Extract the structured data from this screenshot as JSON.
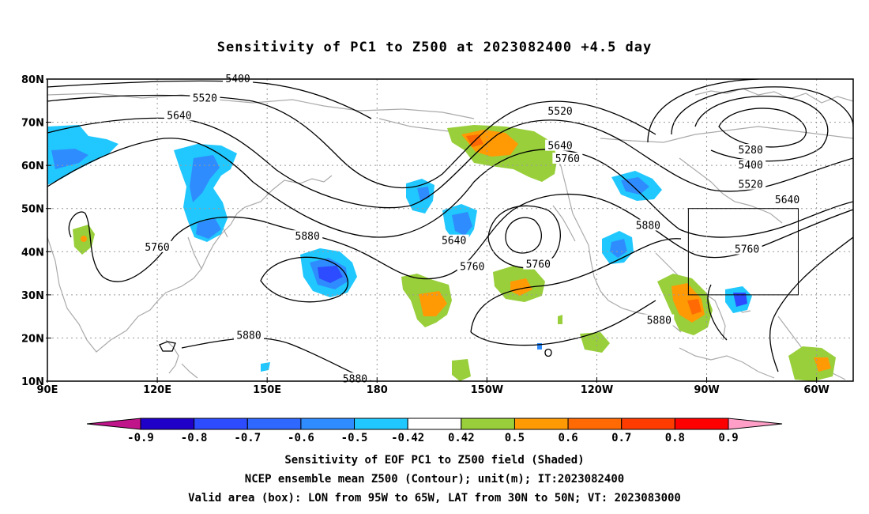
{
  "title": "Sensitivity of PC1 to Z500 at 2023082400 +4.5 day",
  "map": {
    "lon_range": [
      90,
      310
    ],
    "lat_range": [
      10,
      80
    ],
    "lat_labels": [
      {
        "lat": 80,
        "text": "80N"
      },
      {
        "lat": 70,
        "text": "70N"
      },
      {
        "lat": 60,
        "text": "60N"
      },
      {
        "lat": 50,
        "text": "50N"
      },
      {
        "lat": 40,
        "text": "40N"
      },
      {
        "lat": 30,
        "text": "30N"
      },
      {
        "lat": 20,
        "text": "20N"
      },
      {
        "lat": 10,
        "text": "10N"
      }
    ],
    "lon_labels": [
      {
        "lon": 90,
        "text": "90E"
      },
      {
        "lon": 120,
        "text": "120E"
      },
      {
        "lon": 150,
        "text": "150E"
      },
      {
        "lon": 180,
        "text": "180"
      },
      {
        "lon": 210,
        "text": "150W"
      },
      {
        "lon": 240,
        "text": "120W"
      },
      {
        "lon": 270,
        "text": "90W"
      },
      {
        "lon": 300,
        "text": "60W"
      }
    ],
    "valid_box": {
      "lon_min": 265,
      "lon_max": 295,
      "lat_min": 30,
      "lat_max": 50
    },
    "contour_labels": [
      {
        "text": "5400",
        "lon": 142,
        "lat": 80
      },
      {
        "text": "5520",
        "lon": 133,
        "lat": 75.5
      },
      {
        "text": "5640",
        "lon": 126,
        "lat": 71.5
      },
      {
        "text": "5760",
        "lon": 120,
        "lat": 41
      },
      {
        "text": "5880",
        "lon": 161,
        "lat": 43.5
      },
      {
        "text": "5880",
        "lon": 145,
        "lat": 20.5
      },
      {
        "text": "5880",
        "lon": 174,
        "lat": 10.5
      },
      {
        "text": "5640",
        "lon": 201,
        "lat": 42.5
      },
      {
        "text": "5760",
        "lon": 206,
        "lat": 36.5
      },
      {
        "text": "5520",
        "lon": 230,
        "lat": 72.5
      },
      {
        "text": "5640",
        "lon": 230,
        "lat": 64.5
      },
      {
        "text": "5760",
        "lon": 232,
        "lat": 61.5
      },
      {
        "text": "5760",
        "lon": 224,
        "lat": 37
      },
      {
        "text": "5880",
        "lon": 254,
        "lat": 46
      },
      {
        "text": "5880",
        "lon": 257,
        "lat": 24
      },
      {
        "text": "5280",
        "lon": 282,
        "lat": 63.5
      },
      {
        "text": "5400",
        "lon": 282,
        "lat": 60
      },
      {
        "text": "5520",
        "lon": 282,
        "lat": 55.5
      },
      {
        "text": "5640",
        "lon": 292,
        "lat": 52
      },
      {
        "text": "5760",
        "lon": 281,
        "lat": 40.5
      }
    ]
  },
  "colorbar": {
    "ticks": [
      "-0.9",
      "-0.8",
      "-0.7",
      "-0.6",
      "-0.5",
      "-0.42",
      "0.42",
      "0.5",
      "0.6",
      "0.7",
      "0.8",
      "0.9"
    ],
    "colors": [
      "#1f00c8",
      "#2d4bff",
      "#2f68ff",
      "#2f8cff",
      "#20c8ff",
      "#ffffff",
      "#98cf3a",
      "#ff9a05",
      "#ff6a05",
      "#ff3c00",
      "#ff0000"
    ],
    "left_cap": "#c0158a",
    "right_cap": "#ff9fc8"
  },
  "captions": [
    "Sensitivity of EOF PC1 to Z500 field (Shaded)",
    "NCEP ensemble mean Z500 (Contour); unit(m); IT:2023082400",
    "Valid area (box): LON from 95W to 65W, LAT from 30N to 50N; VT: 2023083000"
  ]
}
